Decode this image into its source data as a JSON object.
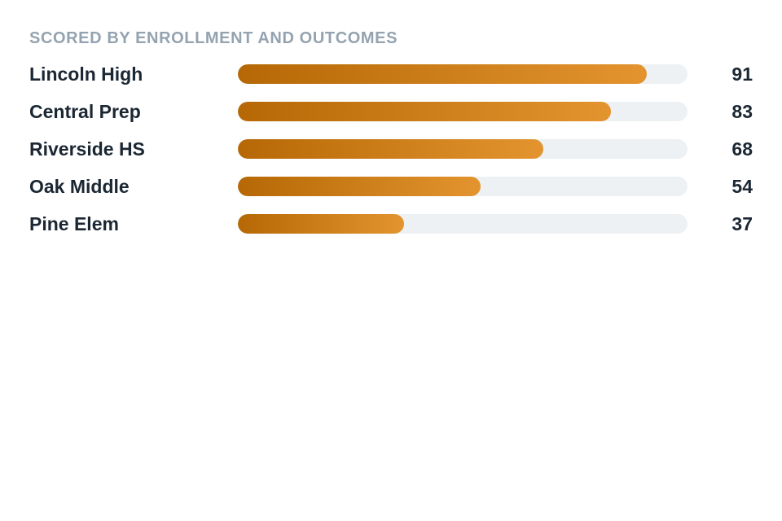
{
  "chart_data": {
    "type": "bar",
    "orientation": "horizontal",
    "title": "SCORED BY ENROLLMENT AND OUTCOMES",
    "categories": [
      "Lincoln High",
      "Central Prep",
      "Riverside HS",
      "Oak Middle",
      "Pine Elem"
    ],
    "values": [
      91,
      83,
      68,
      54,
      37
    ],
    "xlim": [
      0,
      100
    ],
    "grid": false,
    "legend": "none",
    "colors": {
      "bar_start": "#b56805",
      "bar_end": "#e3942f",
      "track": "#eef1f4",
      "label": "#1b2733",
      "title": "#94a3b0"
    }
  }
}
